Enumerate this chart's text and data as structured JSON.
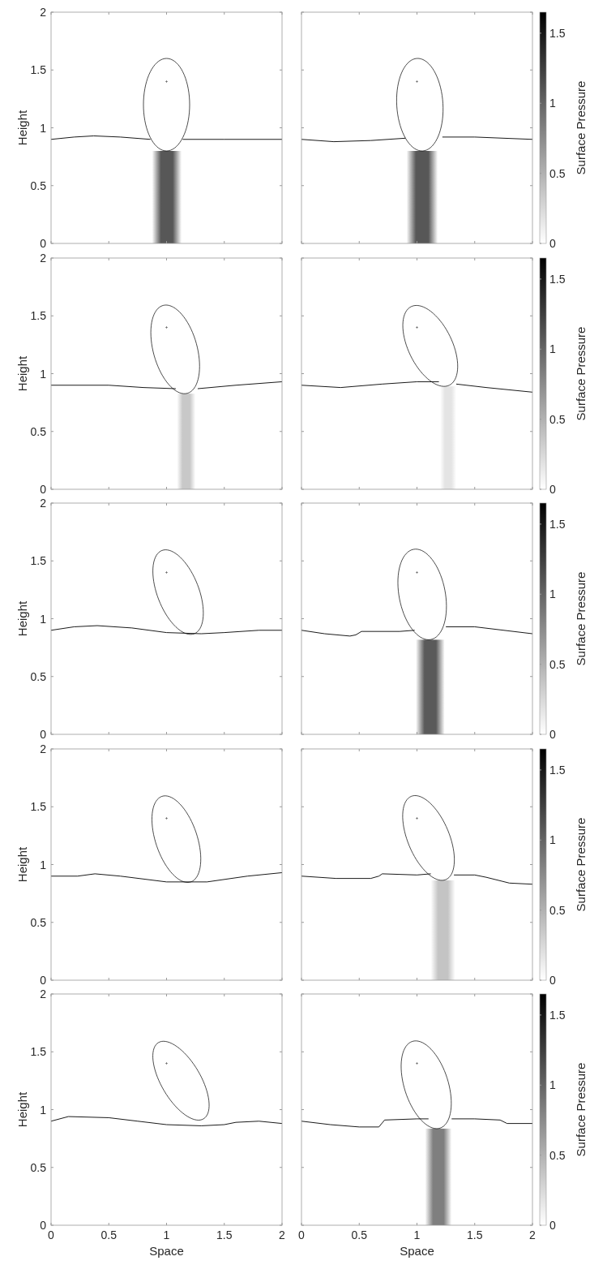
{
  "chart_data": [
    {
      "type": "line",
      "ylabel": "Height",
      "xlim": [
        0,
        2
      ],
      "ylim": [
        0,
        2
      ],
      "xticks": [
        0,
        0.5,
        1,
        1.5,
        2
      ],
      "yticks": [
        0,
        0.5,
        1,
        1.5,
        2
      ],
      "tick_labels": "y",
      "series": [
        {
          "color": "#000000",
          "x": [
            0,
            0.2,
            0.37,
            0.6,
            0.86
          ],
          "values": [
            0.9,
            0.92,
            0.93,
            0.92,
            0.9
          ]
        },
        {
          "color": "#000000",
          "x": [
            1.14,
            1.5,
            2
          ],
          "values": [
            0.9,
            0.9,
            0.9
          ]
        }
      ],
      "bands": [
        {
          "axis": "x",
          "from": 0.875,
          "to": 1.13,
          "color": "#575757"
        }
      ]
    },
    {
      "type": "line",
      "clabel": "Surface Pressure",
      "clim": [
        0,
        1.65
      ],
      "cticks": [
        0,
        0.5,
        1,
        1.5
      ],
      "xlim": [
        0,
        2
      ],
      "ylim": [
        0,
        2
      ],
      "xticks": [
        0,
        0.5,
        1,
        1.5,
        2
      ],
      "yticks": [
        0,
        0.5,
        1,
        1.5,
        2
      ],
      "tick_labels": false,
      "series": [
        {
          "color": "#000000",
          "x": [
            0,
            0.28,
            0.6,
            0.9
          ],
          "values": [
            0.9,
            0.88,
            0.89,
            0.91
          ]
        },
        {
          "color": "#000000",
          "x": [
            1.22,
            1.5,
            2
          ],
          "values": [
            0.92,
            0.92,
            0.9
          ]
        }
      ],
      "bands": [
        {
          "axis": "x",
          "from": 0.91,
          "to": 1.18,
          "color": "#575757"
        }
      ]
    },
    {
      "type": "line",
      "ylabel": "Height",
      "xlim": [
        0,
        2
      ],
      "ylim": [
        0,
        2
      ],
      "xticks": [
        0,
        0.5,
        1,
        1.5,
        2
      ],
      "yticks": [
        0,
        0.5,
        1,
        1.5,
        2
      ],
      "tick_labels": "y",
      "series": [
        {
          "color": "#000000",
          "x": [
            0,
            0.5,
            0.8,
            1.08
          ],
          "values": [
            0.9,
            0.9,
            0.88,
            0.87
          ]
        },
        {
          "color": "#000000",
          "x": [
            1.27,
            1.6,
            2
          ],
          "values": [
            0.87,
            0.9,
            0.93
          ]
        }
      ],
      "bands": [
        {
          "axis": "x",
          "from": 1.09,
          "to": 1.25,
          "color": "#c8c8c8"
        }
      ]
    },
    {
      "type": "line",
      "clabel": "Surface Pressure",
      "clim": [
        0,
        1.65
      ],
      "cticks": [
        0,
        0.5,
        1,
        1.5
      ],
      "xlim": [
        0,
        2
      ],
      "ylim": [
        0,
        2
      ],
      "xticks": [
        0,
        0.5,
        1,
        1.5,
        2
      ],
      "yticks": [
        0,
        0.5,
        1,
        1.5,
        2
      ],
      "tick_labels": false,
      "series": [
        {
          "color": "#000000",
          "x": [
            0,
            0.34,
            0.7,
            1.0,
            1.19
          ],
          "values": [
            0.9,
            0.88,
            0.91,
            0.93,
            0.93
          ]
        },
        {
          "color": "#000000",
          "x": [
            1.34,
            1.6,
            2
          ],
          "values": [
            0.91,
            0.88,
            0.84
          ]
        }
      ],
      "bands": [
        {
          "axis": "x",
          "from": 1.2,
          "to": 1.34,
          "color": "#e4e4e4"
        }
      ]
    },
    {
      "type": "line",
      "ylabel": "Height",
      "xlim": [
        0,
        2
      ],
      "ylim": [
        0,
        2
      ],
      "xticks": [
        0,
        0.5,
        1,
        1.5,
        2
      ],
      "yticks": [
        0,
        0.5,
        1,
        1.5,
        2
      ],
      "tick_labels": "y",
      "series": [
        {
          "color": "#000000",
          "x": [
            0,
            0.2,
            0.4,
            0.7,
            1.0,
            1.3,
            1.5,
            1.8,
            2
          ],
          "values": [
            0.9,
            0.93,
            0.94,
            0.92,
            0.88,
            0.87,
            0.88,
            0.9,
            0.9
          ]
        }
      ]
    },
    {
      "type": "line",
      "clabel": "Surface Pressure",
      "clim": [
        0,
        1.65
      ],
      "cticks": [
        0,
        0.5,
        1,
        1.5
      ],
      "xlim": [
        0,
        2
      ],
      "ylim": [
        0,
        2
      ],
      "xticks": [
        0,
        0.5,
        1,
        1.5,
        2
      ],
      "yticks": [
        0,
        0.5,
        1,
        1.5,
        2
      ],
      "tick_labels": false,
      "series": [
        {
          "color": "#000000",
          "x": [
            0,
            0.2,
            0.42,
            0.47,
            0.52,
            0.85,
            0.98
          ],
          "values": [
            0.9,
            0.87,
            0.85,
            0.86,
            0.89,
            0.89,
            0.9
          ]
        },
        {
          "color": "#000000",
          "x": [
            1.25,
            1.5,
            2
          ],
          "values": [
            0.93,
            0.93,
            0.87
          ]
        }
      ],
      "bands": [
        {
          "axis": "x",
          "from": 0.99,
          "to": 1.24,
          "color": "#5a5a5a"
        }
      ]
    },
    {
      "type": "line",
      "ylabel": "Height",
      "xlim": [
        0,
        2
      ],
      "ylim": [
        0,
        2
      ],
      "xticks": [
        0,
        0.5,
        1,
        1.5,
        2
      ],
      "yticks": [
        0,
        0.5,
        1,
        1.5,
        2
      ],
      "tick_labels": "y",
      "series": [
        {
          "color": "#000000",
          "x": [
            0,
            0.23,
            0.38,
            0.6,
            1.0,
            1.35,
            1.7,
            2
          ],
          "values": [
            0.9,
            0.9,
            0.92,
            0.9,
            0.85,
            0.85,
            0.9,
            0.93
          ]
        }
      ]
    },
    {
      "type": "line",
      "clabel": "Surface Pressure",
      "clim": [
        0,
        1.65
      ],
      "cticks": [
        0,
        0.5,
        1,
        1.5
      ],
      "xlim": [
        0,
        2
      ],
      "ylim": [
        0,
        2
      ],
      "xticks": [
        0,
        0.5,
        1,
        1.5,
        2
      ],
      "yticks": [
        0,
        0.5,
        1,
        1.5,
        2
      ],
      "tick_labels": false,
      "series": [
        {
          "color": "#000000",
          "x": [
            0,
            0.3,
            0.6,
            0.67,
            0.7,
            1.0,
            1.12
          ],
          "values": [
            0.9,
            0.88,
            0.88,
            0.9,
            0.92,
            0.91,
            0.92
          ]
        },
        {
          "color": "#000000",
          "x": [
            1.32,
            1.5,
            1.6,
            1.8,
            2
          ],
          "values": [
            0.91,
            0.91,
            0.89,
            0.84,
            0.83
          ]
        }
      ],
      "bands": [
        {
          "axis": "x",
          "from": 1.12,
          "to": 1.33,
          "color": "#c4c4c4"
        }
      ]
    },
    {
      "type": "line",
      "xlabel": "Space",
      "ylabel": "Height",
      "xlim": [
        0,
        2
      ],
      "ylim": [
        0,
        2
      ],
      "xticks": [
        0,
        0.5,
        1,
        1.5,
        2
      ],
      "yticks": [
        0,
        0.5,
        1,
        1.5,
        2
      ],
      "series": [
        {
          "color": "#000000",
          "x": [
            0,
            0.15,
            0.5,
            0.75,
            1.0,
            1.3,
            1.5,
            1.6,
            1.8,
            2
          ],
          "values": [
            0.9,
            0.94,
            0.93,
            0.9,
            0.87,
            0.86,
            0.87,
            0.89,
            0.9,
            0.88
          ]
        }
      ]
    },
    {
      "type": "line",
      "xlabel": "Space",
      "clabel": "Surface Pressure",
      "clim": [
        0,
        1.65
      ],
      "cticks": [
        0,
        0.5,
        1,
        1.5
      ],
      "xlim": [
        0,
        2
      ],
      "ylim": [
        0,
        2
      ],
      "xticks": [
        0,
        0.5,
        1,
        1.5,
        2
      ],
      "yticks": [
        0,
        0.5,
        1,
        1.5,
        2
      ],
      "tick_labels": "x",
      "series": [
        {
          "color": "#000000",
          "x": [
            0,
            0.25,
            0.5,
            0.67,
            0.72,
            1.0,
            1.1
          ],
          "values": [
            0.9,
            0.87,
            0.85,
            0.85,
            0.91,
            0.92,
            0.92
          ]
        },
        {
          "color": "#000000",
          "x": [
            1.3,
            1.5,
            1.72,
            1.78,
            2
          ],
          "values": [
            0.92,
            0.92,
            0.91,
            0.88,
            0.88
          ]
        }
      ],
      "bands": [
        {
          "axis": "x",
          "from": 1.07,
          "to": 1.3,
          "color": "#7f7f7f"
        }
      ]
    }
  ]
}
